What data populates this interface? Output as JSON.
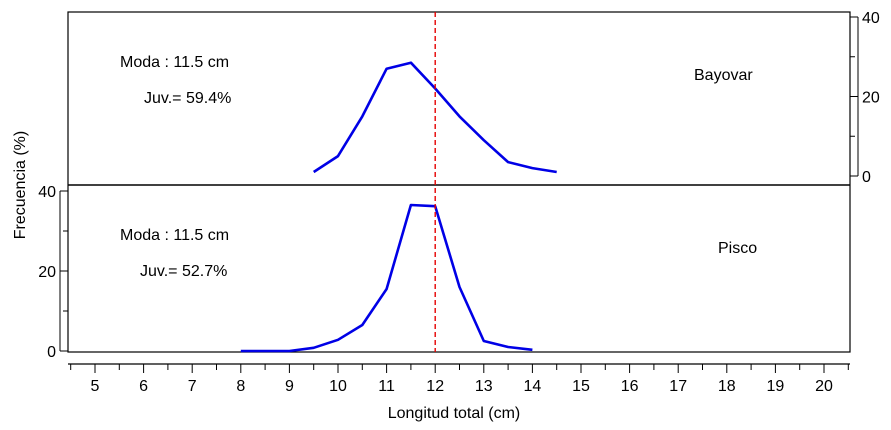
{
  "chart_data": [
    {
      "panel": "top",
      "type": "line",
      "location_label": "Bayovar",
      "annotations": [
        "Moda  : 11.5 cm",
        "Juv.= 59.4%"
      ],
      "series": [
        {
          "x": [
            9.5,
            10,
            10.5,
            11,
            11.5,
            12,
            12.5,
            13,
            13.5,
            14,
            14.5
          ],
          "y": [
            1,
            5,
            15,
            27,
            28.5,
            22,
            15,
            9,
            3.5,
            2,
            1
          ]
        }
      ],
      "y_ticks": [
        0,
        20,
        40
      ],
      "y_axis_side": "right",
      "ylim": [
        -2,
        43
      ]
    },
    {
      "panel": "bottom",
      "type": "line",
      "location_label": "Pisco",
      "annotations": [
        "Moda  : 11.5 cm",
        "Juv.= 52.7%"
      ],
      "series": [
        {
          "x": [
            8,
            8.5,
            9,
            9.5,
            10,
            10.5,
            11,
            11.5,
            12,
            12.5,
            13,
            13.5,
            14
          ],
          "y": [
            0,
            0,
            0,
            0.8,
            2.8,
            6.5,
            15.5,
            36.5,
            36.2,
            16,
            2.5,
            1,
            0.3
          ]
        }
      ],
      "y_ticks": [
        0,
        20,
        40
      ],
      "y_axis_side": "left",
      "ylim": [
        -2,
        42
      ]
    }
  ],
  "x_axis": {
    "label": "Longitud total (cm)",
    "ticks": [
      5,
      6,
      7,
      8,
      9,
      10,
      11,
      12,
      13,
      14,
      15,
      16,
      17,
      18,
      19,
      20
    ],
    "xlim": [
      4.5,
      20.5
    ]
  },
  "y_axis_label": "Frecuencia (%)",
  "reference_line": {
    "x": 12,
    "style": "dashed"
  },
  "colors": {
    "series": "#0000e6",
    "reference_line": "#e60000"
  }
}
